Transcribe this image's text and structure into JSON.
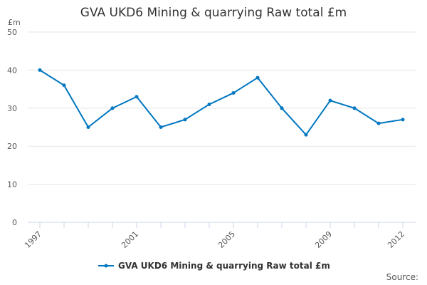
{
  "chart_data": {
    "type": "line",
    "title": "GVA UKD6 Mining & quarrying Raw total £m",
    "ylabel": "£m",
    "xlabel": "",
    "x": [
      1997,
      1998,
      1999,
      2000,
      2001,
      2002,
      2003,
      2004,
      2005,
      2006,
      2007,
      2008,
      2009,
      2010,
      2011,
      2012
    ],
    "series": [
      {
        "name": "GVA UKD6 Mining & quarrying Raw total £m",
        "values": [
          40,
          36,
          25,
          30,
          33,
          25,
          27,
          31,
          34,
          38,
          30,
          23,
          32,
          30,
          26,
          27
        ],
        "color": "#0077c0"
      }
    ],
    "xticks_labeled": [
      1997,
      2001,
      2005,
      2009,
      2012
    ],
    "yticks": [
      0,
      10,
      20,
      30,
      40,
      50
    ],
    "ylim": [
      0,
      50
    ],
    "grid": true,
    "legend": "bottom-center"
  },
  "source_label": "Source:"
}
